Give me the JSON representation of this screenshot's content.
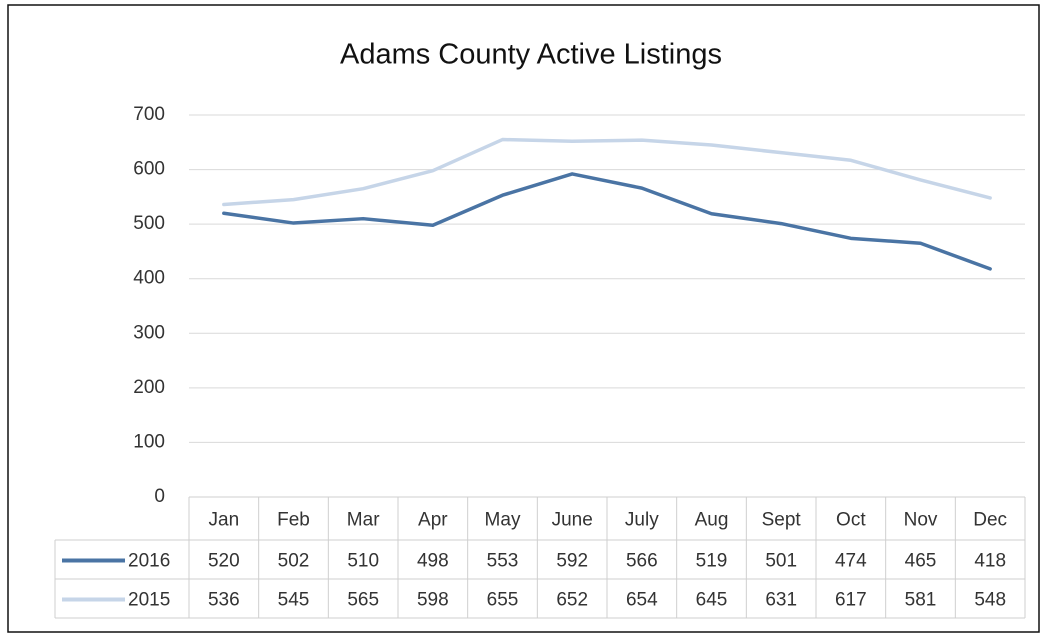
{
  "chart_data": {
    "type": "line",
    "title": "Adams County Active Listings",
    "categories": [
      "Jan",
      "Feb",
      "Mar",
      "Apr",
      "May",
      "June",
      "July",
      "Aug",
      "Sept",
      "Oct",
      "Nov",
      "Dec"
    ],
    "series": [
      {
        "name": "2016",
        "color": "#4a74a4",
        "values": [
          520,
          502,
          510,
          498,
          553,
          592,
          566,
          519,
          501,
          474,
          465,
          418
        ]
      },
      {
        "name": "2015",
        "color": "#c6d5e8",
        "values": [
          536,
          545,
          565,
          598,
          655,
          652,
          654,
          645,
          631,
          617,
          581,
          548
        ]
      }
    ],
    "ylim": [
      0,
      700
    ],
    "yticks": [
      0,
      100,
      200,
      300,
      400,
      500,
      600,
      700
    ],
    "grid": true
  }
}
